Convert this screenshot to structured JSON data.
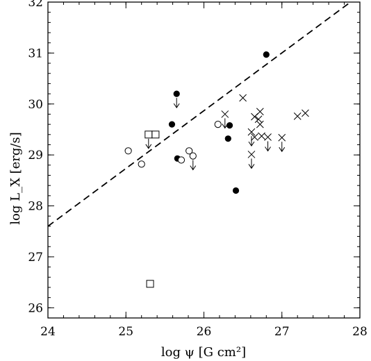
{
  "chart_data": {
    "type": "scatter",
    "title": "",
    "xlabel": "log ψ [G cm²]",
    "ylabel": "log L_X [erg/s]",
    "xlim": [
      24,
      28
    ],
    "ylim": [
      25.8,
      32
    ],
    "x_ticks": [
      "24",
      "25",
      "26",
      "27",
      "28"
    ],
    "y_ticks": [
      "26",
      "27",
      "28",
      "29",
      "30",
      "31",
      "32"
    ],
    "grid": false,
    "fit_line": {
      "style": "dashed",
      "x": [
        24,
        27.88
      ],
      "y": [
        27.6,
        32
      ]
    },
    "series": [
      {
        "marker": "filled-circle",
        "points": [
          {
            "x": 25.59,
            "y": 29.6,
            "upper_limit": false
          },
          {
            "x": 25.65,
            "y": 30.2,
            "upper_limit": true
          },
          {
            "x": 25.66,
            "y": 28.93,
            "upper_limit": false
          },
          {
            "x": 26.31,
            "y": 29.32,
            "upper_limit": false
          },
          {
            "x": 26.33,
            "y": 29.58,
            "upper_limit": false
          },
          {
            "x": 26.41,
            "y": 28.3,
            "upper_limit": false
          },
          {
            "x": 26.8,
            "y": 30.97,
            "upper_limit": false
          }
        ]
      },
      {
        "marker": "open-circle",
        "points": [
          {
            "x": 25.03,
            "y": 29.08,
            "upper_limit": false
          },
          {
            "x": 25.2,
            "y": 28.82,
            "upper_limit": false
          },
          {
            "x": 25.71,
            "y": 28.9,
            "upper_limit": false
          },
          {
            "x": 25.81,
            "y": 29.08,
            "upper_limit": false
          },
          {
            "x": 25.86,
            "y": 28.98,
            "upper_limit": true
          },
          {
            "x": 26.18,
            "y": 29.6,
            "upper_limit": false
          }
        ]
      },
      {
        "marker": "open-square",
        "points": [
          {
            "x": 25.29,
            "y": 29.4,
            "upper_limit": true
          },
          {
            "x": 25.38,
            "y": 29.4,
            "upper_limit": false
          },
          {
            "x": 25.31,
            "y": 26.47,
            "upper_limit": false
          }
        ]
      },
      {
        "marker": "cross",
        "points": [
          {
            "x": 26.27,
            "y": 29.8,
            "upper_limit": true
          },
          {
            "x": 26.5,
            "y": 30.12,
            "upper_limit": false
          },
          {
            "x": 26.61,
            "y": 29.45,
            "upper_limit": true
          },
          {
            "x": 26.61,
            "y": 29.01,
            "upper_limit": true
          },
          {
            "x": 26.65,
            "y": 29.75,
            "upper_limit": false
          },
          {
            "x": 26.65,
            "y": 29.35,
            "upper_limit": false
          },
          {
            "x": 26.7,
            "y": 29.7,
            "upper_limit": false
          },
          {
            "x": 26.72,
            "y": 29.85,
            "upper_limit": false
          },
          {
            "x": 26.72,
            "y": 29.6,
            "upper_limit": false
          },
          {
            "x": 26.74,
            "y": 29.37,
            "upper_limit": false
          },
          {
            "x": 26.82,
            "y": 29.35,
            "upper_limit": true
          },
          {
            "x": 27.0,
            "y": 29.34,
            "upper_limit": true
          },
          {
            "x": 27.2,
            "y": 29.76,
            "upper_limit": false
          },
          {
            "x": 27.3,
            "y": 29.82,
            "upper_limit": false
          }
        ]
      }
    ]
  }
}
